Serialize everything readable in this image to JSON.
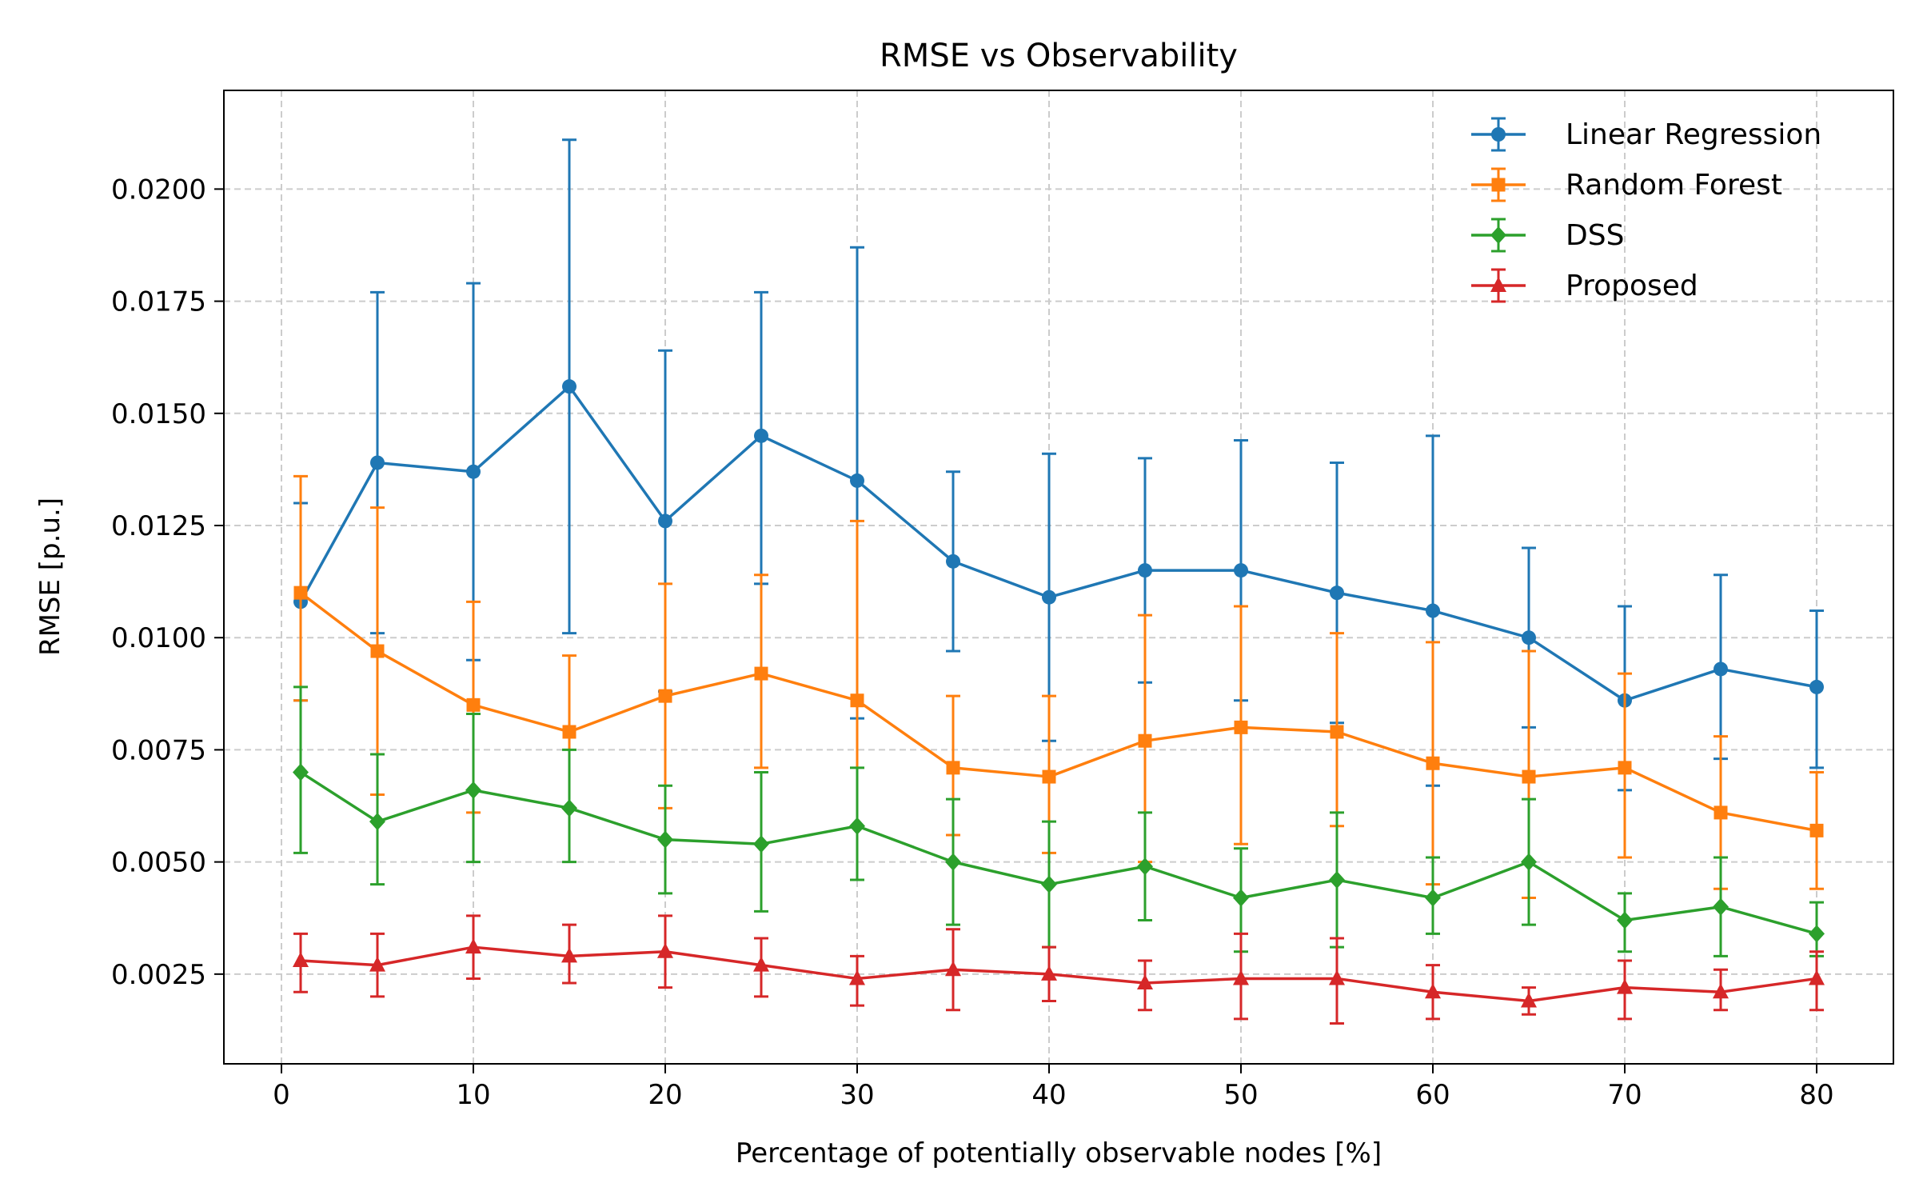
{
  "chart_data": {
    "type": "line",
    "title": "RMSE vs Observability",
    "xlabel": "Percentage of potentially observable nodes [%]",
    "ylabel": "RMSE [p.u.]",
    "xlim": [
      -3,
      84
    ],
    "ylim": [
      0.0005,
      0.0222
    ],
    "xticks": [
      0,
      10,
      20,
      30,
      40,
      50,
      60,
      70,
      80
    ],
    "xtick_labels": [
      "0",
      "10",
      "20",
      "30",
      "40",
      "50",
      "60",
      "70",
      "80"
    ],
    "yticks": [
      0.0025,
      0.005,
      0.0075,
      0.01,
      0.0125,
      0.015,
      0.0175,
      0.02
    ],
    "ytick_labels": [
      "0.0025",
      "0.0050",
      "0.0075",
      "0.0100",
      "0.0125",
      "0.0150",
      "0.0175",
      "0.0200"
    ],
    "grid": true,
    "legend_position": "top-right",
    "x": [
      1,
      5,
      10,
      15,
      20,
      25,
      30,
      35,
      40,
      45,
      50,
      55,
      60,
      65,
      70,
      75,
      80
    ],
    "series": [
      {
        "name": "Linear Regression",
        "color": "#1f77b4",
        "marker": "circle",
        "values": [
          0.0108,
          0.0139,
          0.0137,
          0.0156,
          0.0126,
          0.0145,
          0.0135,
          0.0117,
          0.0109,
          0.0115,
          0.0115,
          0.011,
          0.0106,
          0.01,
          0.0086,
          0.0093,
          0.0089
        ],
        "lower": [
          0.0086,
          0.0101,
          0.0095,
          0.0101,
          0.0088,
          0.0112,
          0.0082,
          0.0097,
          0.0077,
          0.009,
          0.0086,
          0.0081,
          0.0067,
          0.008,
          0.0066,
          0.0073,
          0.0071
        ],
        "upper": [
          0.013,
          0.0177,
          0.0179,
          0.0211,
          0.0164,
          0.0177,
          0.0187,
          0.0137,
          0.0141,
          0.014,
          0.0144,
          0.0139,
          0.0145,
          0.012,
          0.0107,
          0.0114,
          0.0106
        ]
      },
      {
        "name": "Random Forest",
        "color": "#ff7f0e",
        "marker": "square",
        "values": [
          0.011,
          0.0097,
          0.0085,
          0.0079,
          0.0087,
          0.0092,
          0.0086,
          0.0071,
          0.0069,
          0.0077,
          0.008,
          0.0079,
          0.0072,
          0.0069,
          0.0071,
          0.0061,
          0.0057
        ],
        "lower": [
          0.0086,
          0.0065,
          0.0061,
          0.0062,
          0.0062,
          0.0071,
          0.0046,
          0.0056,
          0.0052,
          0.005,
          0.0054,
          0.0058,
          0.0045,
          0.0042,
          0.0051,
          0.0044,
          0.0044
        ],
        "upper": [
          0.0136,
          0.0129,
          0.0108,
          0.0096,
          0.0112,
          0.0114,
          0.0126,
          0.0087,
          0.0087,
          0.0105,
          0.0107,
          0.0101,
          0.0099,
          0.0097,
          0.0092,
          0.0078,
          0.007
        ]
      },
      {
        "name": "DSS",
        "color": "#2ca02c",
        "marker": "diamond",
        "values": [
          0.007,
          0.0059,
          0.0066,
          0.0062,
          0.0055,
          0.0054,
          0.0058,
          0.005,
          0.0045,
          0.0049,
          0.0042,
          0.0046,
          0.0042,
          0.005,
          0.0037,
          0.004,
          0.0034
        ],
        "lower": [
          0.0052,
          0.0045,
          0.005,
          0.005,
          0.0043,
          0.0039,
          0.0046,
          0.0036,
          0.0031,
          0.0037,
          0.003,
          0.0031,
          0.0034,
          0.0036,
          0.003,
          0.0029,
          0.0029
        ],
        "upper": [
          0.0089,
          0.0074,
          0.0083,
          0.0075,
          0.0067,
          0.007,
          0.0071,
          0.0064,
          0.0059,
          0.0061,
          0.0053,
          0.0061,
          0.0051,
          0.0064,
          0.0043,
          0.0051,
          0.0041
        ]
      },
      {
        "name": "Proposed",
        "color": "#d62728",
        "marker": "triangle",
        "values": [
          0.0028,
          0.0027,
          0.0031,
          0.0029,
          0.003,
          0.0027,
          0.0024,
          0.0026,
          0.0025,
          0.0023,
          0.0024,
          0.0024,
          0.0021,
          0.0019,
          0.0022,
          0.0021,
          0.0024
        ],
        "lower": [
          0.0021,
          0.002,
          0.0024,
          0.0023,
          0.0022,
          0.002,
          0.0018,
          0.0017,
          0.0019,
          0.0017,
          0.0015,
          0.0014,
          0.0015,
          0.0016,
          0.0015,
          0.0017,
          0.0017
        ],
        "upper": [
          0.0034,
          0.0034,
          0.0038,
          0.0036,
          0.0038,
          0.0033,
          0.0029,
          0.0035,
          0.0031,
          0.0028,
          0.0034,
          0.0033,
          0.0027,
          0.0022,
          0.0028,
          0.0026,
          0.003
        ]
      }
    ]
  }
}
